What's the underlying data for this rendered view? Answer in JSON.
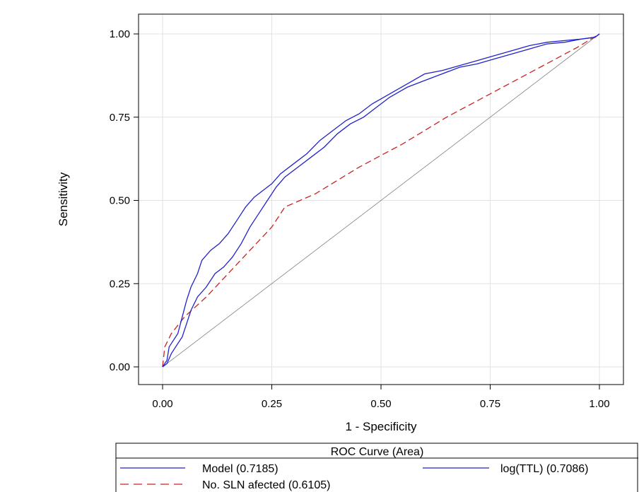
{
  "chart_data": {
    "type": "line",
    "title": "",
    "xlabel": "1 - Specificity",
    "ylabel": "Sensitivity",
    "xlim": [
      0,
      1
    ],
    "ylim": [
      0,
      1
    ],
    "x_ticks": [
      "0.00",
      "0.25",
      "0.50",
      "0.75",
      "1.00"
    ],
    "y_ticks": [
      "0.00",
      "0.25",
      "0.50",
      "0.75",
      "1.00"
    ],
    "grid": true,
    "legend": {
      "title": "ROC Curve (Area)",
      "placement": "bottom"
    },
    "series": [
      {
        "name": "Model  (0.7185)",
        "color": "#2222cc",
        "dash": "solid",
        "points": [
          [
            0,
            0
          ],
          [
            0.01,
            0.02
          ],
          [
            0.015,
            0.06
          ],
          [
            0.025,
            0.08
          ],
          [
            0.035,
            0.1
          ],
          [
            0.045,
            0.15
          ],
          [
            0.055,
            0.2
          ],
          [
            0.065,
            0.24
          ],
          [
            0.08,
            0.28
          ],
          [
            0.09,
            0.32
          ],
          [
            0.11,
            0.35
          ],
          [
            0.13,
            0.37
          ],
          [
            0.15,
            0.4
          ],
          [
            0.17,
            0.44
          ],
          [
            0.19,
            0.48
          ],
          [
            0.21,
            0.51
          ],
          [
            0.23,
            0.53
          ],
          [
            0.25,
            0.55
          ],
          [
            0.27,
            0.58
          ],
          [
            0.3,
            0.61
          ],
          [
            0.33,
            0.64
          ],
          [
            0.36,
            0.68
          ],
          [
            0.39,
            0.71
          ],
          [
            0.42,
            0.74
          ],
          [
            0.45,
            0.76
          ],
          [
            0.48,
            0.79
          ],
          [
            0.52,
            0.82
          ],
          [
            0.56,
            0.85
          ],
          [
            0.6,
            0.88
          ],
          [
            0.64,
            0.89
          ],
          [
            0.68,
            0.905
          ],
          [
            0.72,
            0.92
          ],
          [
            0.76,
            0.935
          ],
          [
            0.8,
            0.95
          ],
          [
            0.84,
            0.965
          ],
          [
            0.88,
            0.975
          ],
          [
            0.92,
            0.98
          ],
          [
            0.96,
            0.985
          ],
          [
            0.99,
            0.99
          ],
          [
            1,
            1
          ]
        ]
      },
      {
        "name": "log(TTL)  (0.7086)",
        "color": "#2222cc",
        "dash": "solid",
        "points": [
          [
            0,
            0
          ],
          [
            0.01,
            0.01
          ],
          [
            0.02,
            0.04
          ],
          [
            0.03,
            0.06
          ],
          [
            0.045,
            0.09
          ],
          [
            0.055,
            0.13
          ],
          [
            0.065,
            0.17
          ],
          [
            0.08,
            0.21
          ],
          [
            0.1,
            0.24
          ],
          [
            0.12,
            0.28
          ],
          [
            0.14,
            0.3
          ],
          [
            0.16,
            0.33
          ],
          [
            0.18,
            0.37
          ],
          [
            0.2,
            0.42
          ],
          [
            0.22,
            0.46
          ],
          [
            0.24,
            0.5
          ],
          [
            0.26,
            0.54
          ],
          [
            0.28,
            0.57
          ],
          [
            0.31,
            0.6
          ],
          [
            0.34,
            0.63
          ],
          [
            0.37,
            0.66
          ],
          [
            0.4,
            0.7
          ],
          [
            0.43,
            0.73
          ],
          [
            0.46,
            0.75
          ],
          [
            0.49,
            0.78
          ],
          [
            0.52,
            0.81
          ],
          [
            0.56,
            0.84
          ],
          [
            0.6,
            0.86
          ],
          [
            0.64,
            0.88
          ],
          [
            0.68,
            0.9
          ],
          [
            0.72,
            0.91
          ],
          [
            0.76,
            0.925
          ],
          [
            0.8,
            0.94
          ],
          [
            0.84,
            0.955
          ],
          [
            0.88,
            0.97
          ],
          [
            0.92,
            0.975
          ],
          [
            0.96,
            0.985
          ],
          [
            0.99,
            0.99
          ],
          [
            1,
            1
          ]
        ]
      },
      {
        "name": "No. SLN afected  (0.6105)",
        "color": "#cc2222",
        "dash": "dashed",
        "points": [
          [
            0,
            0
          ],
          [
            0.005,
            0.06
          ],
          [
            0.02,
            0.1
          ],
          [
            0.05,
            0.15
          ],
          [
            0.1,
            0.21
          ],
          [
            0.15,
            0.28
          ],
          [
            0.2,
            0.35
          ],
          [
            0.25,
            0.42
          ],
          [
            0.28,
            0.48
          ],
          [
            0.35,
            0.52
          ],
          [
            0.45,
            0.6
          ],
          [
            0.55,
            0.67
          ],
          [
            0.65,
            0.75
          ],
          [
            0.75,
            0.82
          ],
          [
            0.85,
            0.89
          ],
          [
            0.95,
            0.96
          ],
          [
            1,
            1
          ]
        ]
      },
      {
        "name": "",
        "color": "#808080",
        "dash": "solid",
        "role": "reference",
        "points": [
          [
            0,
            0
          ],
          [
            1,
            1
          ]
        ]
      }
    ]
  }
}
